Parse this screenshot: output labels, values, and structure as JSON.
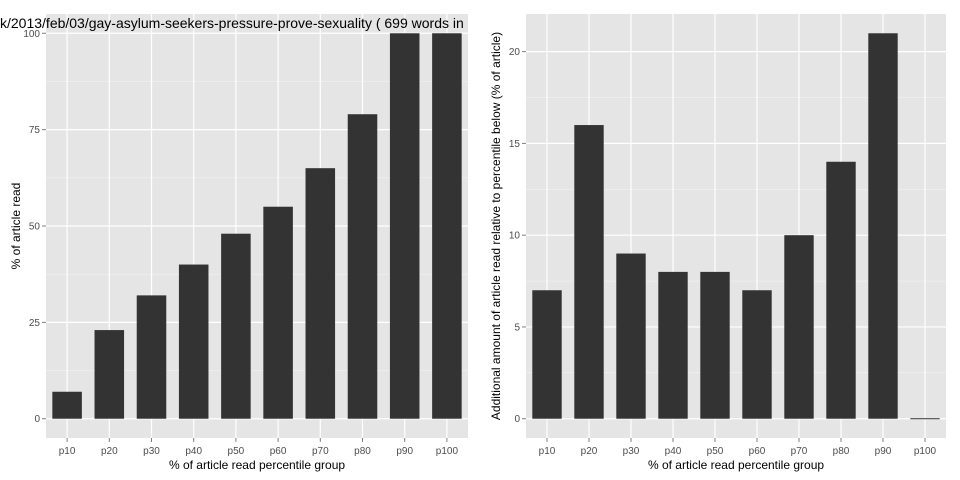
{
  "title": "k/2013/feb/03/gay-asylum-seekers-pressure-prove-sexuality ( 699 words in",
  "colors": {
    "panel": "#e5e5e5",
    "grid_major": "#ffffff",
    "grid_minor": "#f2f2f2",
    "bar": "#333333",
    "tick_text": "#4d4d4d"
  },
  "chart_data": [
    {
      "type": "bar",
      "categories": [
        "p10",
        "p20",
        "p30",
        "p40",
        "p50",
        "p60",
        "p70",
        "p80",
        "p90",
        "p100"
      ],
      "values": [
        7,
        23,
        32,
        40,
        48,
        55,
        65,
        79,
        100,
        100
      ],
      "xlabel": "% of article read percentile group",
      "ylabel": "% of article read",
      "ylim": [
        -5,
        105
      ],
      "yticks": [
        0,
        25,
        50,
        75,
        100
      ],
      "ytick_labels": [
        "0",
        "25",
        "50",
        "75",
        "100"
      ],
      "grid": true
    },
    {
      "type": "bar",
      "categories": [
        "p10",
        "p20",
        "p30",
        "p40",
        "p50",
        "p60",
        "p70",
        "p80",
        "p90",
        "p100"
      ],
      "values": [
        7,
        16,
        9,
        8,
        8,
        7,
        10,
        14,
        21,
        0
      ],
      "xlabel": "% of article read percentile group",
      "ylabel": "Additional amount of article read relative to percentile below (% of article)",
      "ylim": [
        -1.05,
        22.05
      ],
      "yticks": [
        0,
        5,
        10,
        15,
        20
      ],
      "ytick_labels": [
        "0",
        "5",
        "10",
        "15",
        "20"
      ],
      "grid": true
    }
  ]
}
